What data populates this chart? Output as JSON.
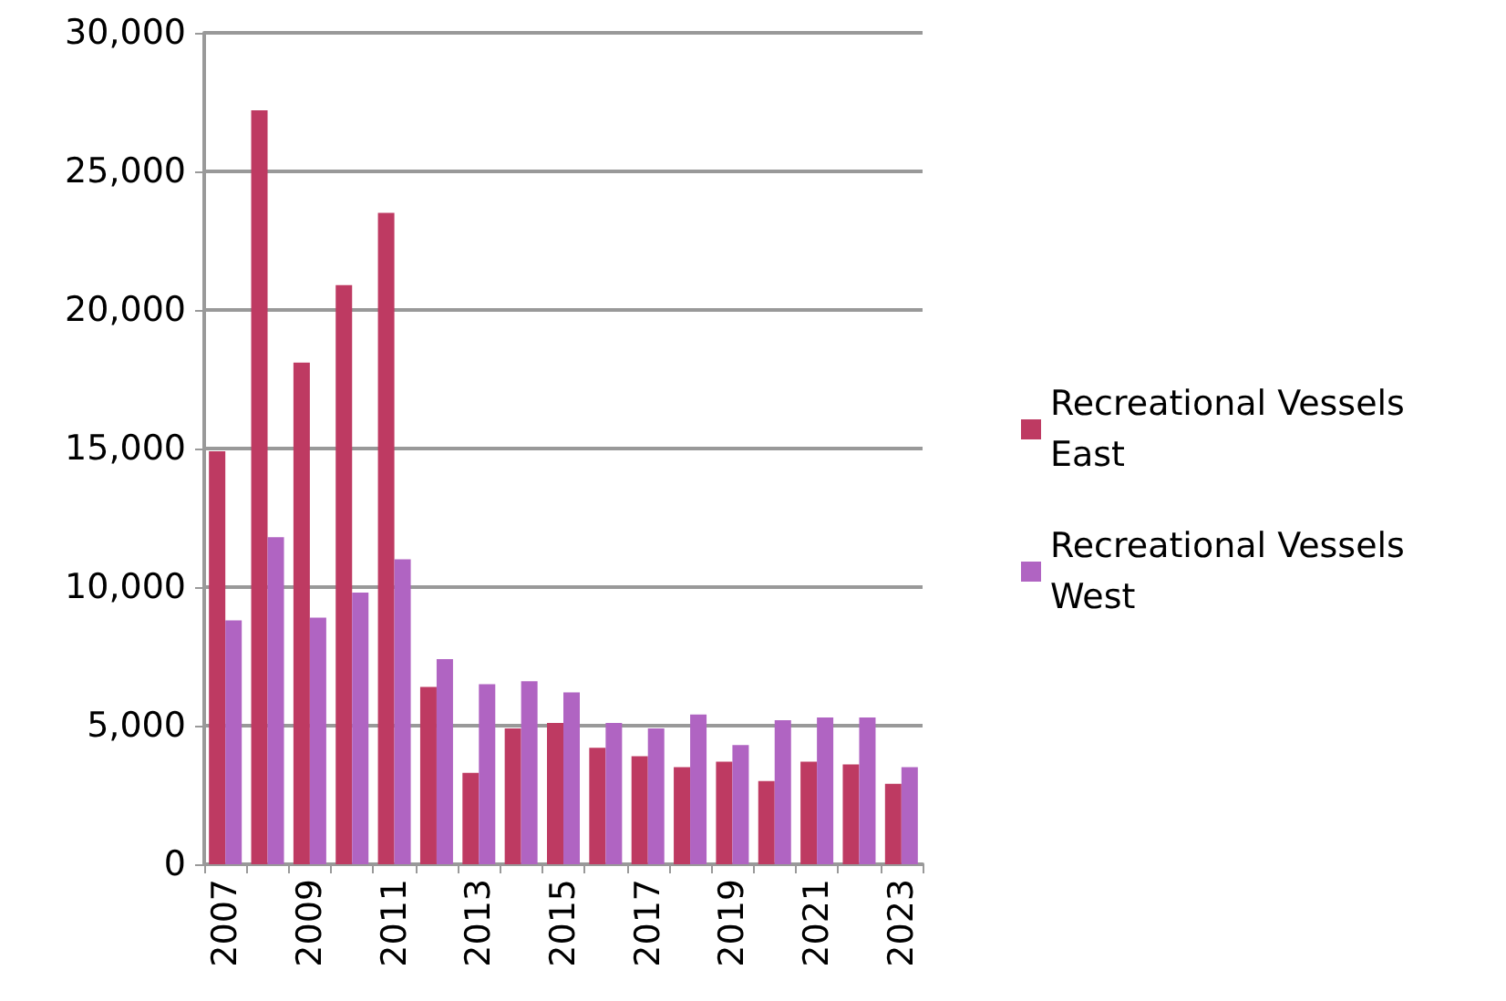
{
  "chart_data": {
    "type": "bar",
    "categories": [
      "2007",
      null,
      "2009",
      null,
      "2011",
      null,
      "2013",
      null,
      "2015",
      null,
      "2017",
      null,
      "2019",
      null,
      "2021",
      null,
      "2023"
    ],
    "series": [
      {
        "name": "Recreational Vessels East",
        "color": "#be3a62",
        "values": [
          14900,
          27200,
          18100,
          20900,
          23500,
          6400,
          3300,
          4900,
          5100,
          4200,
          3900,
          3500,
          3700,
          3000,
          3700,
          3600,
          2900
        ]
      },
      {
        "name": "Recreational Vessels West",
        "color": "#b064c2",
        "values": [
          8800,
          11800,
          8900,
          9800,
          11000,
          7400,
          6500,
          6600,
          6200,
          5100,
          4900,
          5400,
          4300,
          5200,
          5300,
          5300,
          3500
        ]
      }
    ],
    "ylim": [
      0,
      30000
    ],
    "yticks": [
      {
        "value": 0,
        "label": "0"
      },
      {
        "value": 5000,
        "label": "5,000"
      },
      {
        "value": 10000,
        "label": "10,000"
      },
      {
        "value": 15000,
        "label": "15,000"
      },
      {
        "value": 20000,
        "label": "20,000"
      },
      {
        "value": 25000,
        "label": "25,000"
      },
      {
        "value": 30000,
        "label": "30,000"
      }
    ],
    "grid": "y",
    "legend": "right"
  }
}
